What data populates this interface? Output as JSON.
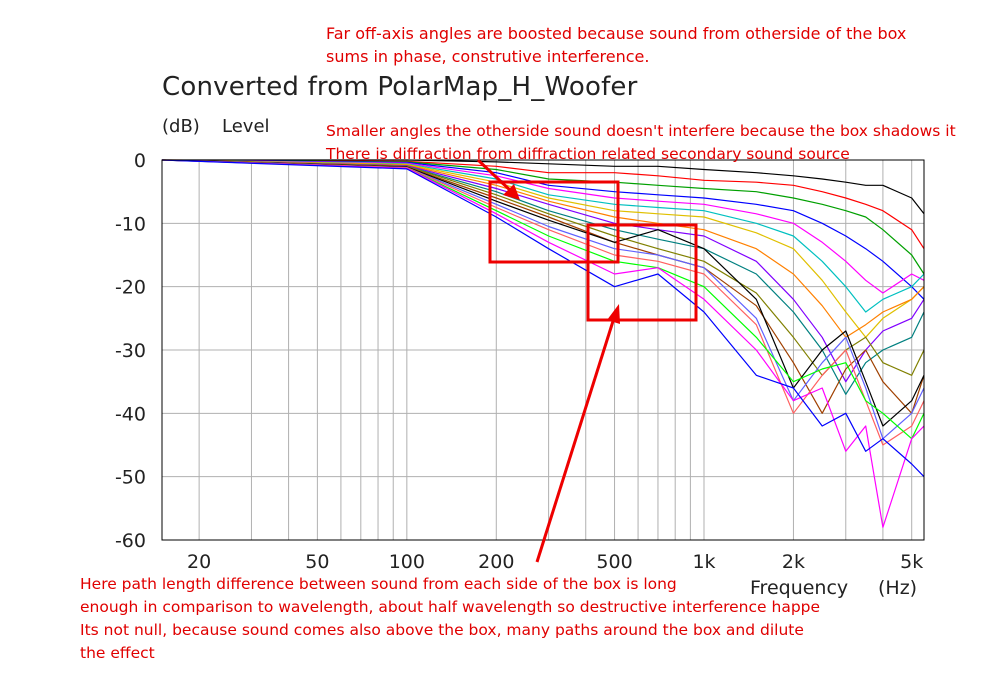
{
  "chart_data": {
    "type": "line",
    "title": "Converted from PolarMap_H_Woofer",
    "y_unit": "(dB)",
    "ylabel": "Level",
    "xlabel": "Frequency",
    "x_unit": "(Hz)",
    "x_scale": "log",
    "xlim": [
      15,
      5500
    ],
    "ylim": [
      -60,
      0
    ],
    "x_ticks": [
      20,
      30,
      40,
      50,
      60,
      70,
      80,
      90,
      100,
      200,
      300,
      400,
      500,
      600,
      700,
      800,
      900,
      1000,
      2000,
      3000,
      4000,
      5000
    ],
    "x_tick_labels": [
      {
        "value": 20,
        "label": "20"
      },
      {
        "value": 50,
        "label": "50"
      },
      {
        "value": 100,
        "label": "100"
      },
      {
        "value": 200,
        "label": "200"
      },
      {
        "value": 500,
        "label": "500"
      },
      {
        "value": 1000,
        "label": "1k"
      },
      {
        "value": 2000,
        "label": "2k"
      },
      {
        "value": 5000,
        "label": "5k"
      }
    ],
    "y_tick_labels": [
      {
        "value": 0,
        "label": "0"
      },
      {
        "value": -10,
        "label": "-10"
      },
      {
        "value": -20,
        "label": "-20"
      },
      {
        "value": -30,
        "label": "-30"
      },
      {
        "value": -40,
        "label": "-40"
      },
      {
        "value": -50,
        "label": "-50"
      },
      {
        "value": -60,
        "label": "-60"
      }
    ],
    "grid": true,
    "legend": "none",
    "series": [
      {
        "color": "#000000",
        "x": [
          15,
          100,
          200,
          300,
          500,
          700,
          1000,
          1500,
          2000,
          2500,
          3000,
          3500,
          4000,
          5000,
          5500
        ],
        "values": [
          0,
          0,
          -0.3,
          -0.6,
          -1,
          -1,
          -1.5,
          -2,
          -2.5,
          -3,
          -3.5,
          -4,
          -4,
          -6,
          -8.5
        ]
      },
      {
        "color": "#ff0000",
        "x": [
          15,
          100,
          200,
          300,
          500,
          700,
          1000,
          1500,
          2000,
          2500,
          3000,
          3500,
          4000,
          5000,
          5500
        ],
        "values": [
          0,
          -0.2,
          -1,
          -2,
          -2,
          -2.5,
          -3.2,
          -3.5,
          -4,
          -5,
          -6,
          -7,
          -8,
          -11,
          -14
        ]
      },
      {
        "color": "#00a000",
        "x": [
          15,
          100,
          200,
          300,
          500,
          700,
          1000,
          1500,
          2000,
          2500,
          3000,
          3500,
          4000,
          5000,
          5500
        ],
        "values": [
          0,
          -0.3,
          -1.5,
          -3,
          -3.5,
          -4,
          -4.5,
          -5,
          -6,
          -7,
          -8,
          -9,
          -11,
          -15,
          -18
        ]
      },
      {
        "color": "#0000ff",
        "x": [
          15,
          100,
          200,
          300,
          500,
          700,
          1000,
          1500,
          2000,
          2500,
          3000,
          3500,
          4000,
          5000,
          5500
        ],
        "values": [
          0,
          -0.4,
          -2,
          -4,
          -5,
          -5.5,
          -6,
          -7,
          -8,
          -10,
          -12,
          -14,
          -16,
          -20,
          -22
        ]
      },
      {
        "color": "#ff00ff",
        "x": [
          15,
          100,
          200,
          300,
          500,
          700,
          1000,
          1500,
          2000,
          2500,
          3000,
          3500,
          4000,
          5000,
          5500
        ],
        "values": [
          0,
          -0.5,
          -2.5,
          -4.5,
          -6,
          -6.5,
          -7,
          -8.5,
          -10,
          -13,
          -16,
          -19,
          -21,
          -18,
          -19
        ]
      },
      {
        "color": "#00c0c0",
        "x": [
          15,
          100,
          200,
          300,
          500,
          700,
          1000,
          1500,
          2000,
          2500,
          3000,
          3500,
          4000,
          5000,
          5500
        ],
        "values": [
          0,
          -0.6,
          -3,
          -5.5,
          -7,
          -7.5,
          -8,
          -10,
          -12,
          -16,
          -20,
          -24,
          -22,
          -20,
          -18
        ]
      },
      {
        "color": "#e0c000",
        "x": [
          15,
          100,
          200,
          300,
          500,
          700,
          1000,
          1500,
          2000,
          2500,
          3000,
          3500,
          4000,
          5000,
          5500
        ],
        "values": [
          0,
          -0.7,
          -3.5,
          -6,
          -8,
          -8.5,
          -9,
          -11.5,
          -14,
          -19,
          -24,
          -28,
          -25,
          -22,
          -20
        ]
      },
      {
        "color": "#ff8000",
        "x": [
          15,
          100,
          200,
          300,
          500,
          700,
          1000,
          1500,
          2000,
          2500,
          3000,
          3500,
          4000,
          5000,
          5500
        ],
        "values": [
          0,
          -0.8,
          -4,
          -6.5,
          -9,
          -10,
          -11,
          -14,
          -18,
          -23,
          -28,
          -26,
          -24,
          -22,
          -20
        ]
      },
      {
        "color": "#8000ff",
        "x": [
          15,
          100,
          200,
          300,
          500,
          700,
          1000,
          1500,
          2000,
          2500,
          3000,
          3500,
          4000,
          5000,
          5500
        ],
        "values": [
          0,
          -0.9,
          -4.5,
          -7,
          -10,
          -11,
          -12,
          -16,
          -22,
          -28,
          -35,
          -30,
          -27,
          -25,
          -22
        ]
      },
      {
        "color": "#008080",
        "x": [
          15,
          100,
          200,
          300,
          500,
          700,
          1000,
          1500,
          2000,
          2500,
          3000,
          3500,
          4000,
          5000,
          5500
        ],
        "values": [
          0,
          -1,
          -5,
          -8,
          -11,
          -12.5,
          -14,
          -18,
          -24,
          -30,
          -37,
          -32,
          -30,
          -28,
          -24
        ]
      },
      {
        "color": "#808000",
        "x": [
          15,
          100,
          200,
          300,
          500,
          700,
          1000,
          1500,
          2000,
          2500,
          3000,
          3500,
          4000,
          5000,
          5500
        ],
        "values": [
          0,
          -1,
          -5.5,
          -8.5,
          -12,
          -14,
          -16,
          -21,
          -28,
          -34,
          -30,
          -28,
          -32,
          -34,
          -30
        ]
      },
      {
        "color": "#a04000",
        "x": [
          15,
          100,
          200,
          300,
          500,
          700,
          1000,
          1500,
          2000,
          2500,
          3000,
          3500,
          4000,
          5000,
          5500
        ],
        "values": [
          0,
          -1.1,
          -6,
          -9,
          -13,
          -15,
          -17,
          -23,
          -32,
          -40,
          -33,
          -30,
          -35,
          -40,
          -34
        ]
      },
      {
        "color": "#000000",
        "x": [
          15,
          100,
          200,
          300,
          500,
          700,
          1000,
          1500,
          2000,
          2500,
          3000,
          3500,
          4000,
          5000,
          5500
        ],
        "values": [
          0,
          -1.1,
          -6.5,
          -9.5,
          -13,
          -11,
          -14,
          -22,
          -36,
          -30,
          -27,
          -35,
          -42,
          -38,
          -34
        ]
      },
      {
        "color": "#6060ff",
        "x": [
          15,
          100,
          200,
          300,
          500,
          700,
          1000,
          1500,
          2000,
          2500,
          3000,
          3500,
          4000,
          5000,
          5500
        ],
        "values": [
          0,
          -1.2,
          -7,
          -10.5,
          -14,
          -15,
          -17,
          -25,
          -38,
          -32,
          -28,
          -36,
          -44,
          -40,
          -36
        ]
      },
      {
        "color": "#ff6060",
        "x": [
          15,
          100,
          200,
          300,
          500,
          700,
          1000,
          1500,
          2000,
          2500,
          3000,
          3500,
          4000,
          5000,
          5500
        ],
        "values": [
          0,
          -1.2,
          -7.5,
          -11,
          -15,
          -16,
          -18,
          -26,
          -40,
          -34,
          -30,
          -38,
          -45,
          -42,
          -38
        ]
      },
      {
        "color": "#00ff00",
        "x": [
          15,
          100,
          200,
          300,
          500,
          700,
          1000,
          1500,
          2000,
          2500,
          3000,
          3500,
          4000,
          5000,
          5500
        ],
        "values": [
          0,
          -1.3,
          -8,
          -12,
          -16,
          -17,
          -20,
          -28,
          -35,
          -33,
          -32,
          -38,
          -40,
          -44,
          -40
        ]
      },
      {
        "color": "#ff00ff",
        "x": [
          15,
          100,
          200,
          300,
          500,
          700,
          1000,
          1500,
          2000,
          2500,
          3000,
          3500,
          4000,
          5000,
          5500
        ],
        "values": [
          0,
          -1.3,
          -8.5,
          -13,
          -18,
          -17,
          -22,
          -30,
          -38,
          -36,
          -46,
          -42,
          -58,
          -44,
          -42
        ]
      },
      {
        "color": "#0000ff",
        "x": [
          15,
          100,
          200,
          300,
          500,
          700,
          1000,
          1500,
          2000,
          2500,
          3000,
          3500,
          4000,
          5000,
          5500
        ],
        "values": [
          0,
          -1.4,
          -9,
          -14,
          -20,
          -18,
          -24,
          -34,
          -36,
          -42,
          -40,
          -46,
          -44,
          -48,
          -50
        ]
      }
    ]
  },
  "annotations": {
    "note_top_line1": "Far off-axis angles are boosted because sound from otherside of the box",
    "note_top_line2": "sums in phase, construtive interference.",
    "note_mid_line1": "Smaller angles the otherside sound doesn't interfere because the box shadows it",
    "note_mid_line2": "There is diffraction from diffraction related secondary sound source",
    "note_bottom_line1": "Here path length difference between sound from each side of the box is long",
    "note_bottom_line2": "enough in comparison to wavelength, about half wavelength so destructive interference happe",
    "note_bottom_line3": "Its not null, because sound comes also above the box, many paths around the box and dilute",
    "note_bottom_line4": "the effect",
    "annotation_color": "#e00000"
  }
}
